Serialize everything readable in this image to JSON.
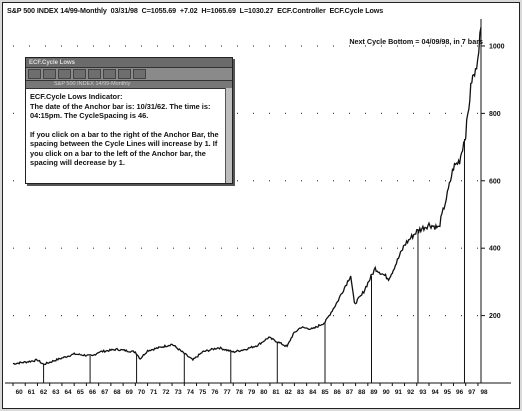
{
  "header": {
    "title": "S&P 500 INDEX 14/99-Monthly",
    "date": "03/31/98",
    "close": "C=1055.69",
    "change": "+7.02",
    "high": "H=1065.69",
    "low": "L=1030.27",
    "controller": "ECF.Controller",
    "indicator": "ECF.Cycle Lows"
  },
  "next_cycle_text": "Next Cycle Bottom = 04/09/98, in 7 bars",
  "dialog": {
    "title_bar": "ECF.Cycle Lows",
    "subbar": "S&P 500 INDEX 14/99-Monthly",
    "heading": "ECF.Cycle Lows Indicator:",
    "line1": "The date of the Anchor bar is: 10/31/62. The time is: 04:15pm. The CycleSpacing is 46.",
    "line2": "If you click on a bar to the right of the Anchor Bar, the spacing between the Cycle Lines will increase by 1. If you click on a bar to the left of the Anchor bar, the spacing will decrease by 1.",
    "toolbar_icons": [
      "arrow-icon",
      "cut-icon",
      "copy-icon",
      "paste-icon",
      "print-icon",
      "zoom-icon",
      "help-icon",
      "window-icon"
    ]
  },
  "chart_data": {
    "type": "line",
    "title": "S&P 500 INDEX 14/99-Monthly",
    "y_ticks": [
      200,
      400,
      600,
      800,
      1000
    ],
    "ylim": [
      0,
      1080
    ],
    "x_tick_labels": [
      "60",
      "61",
      "62",
      "63",
      "64",
      "65",
      "66",
      "67",
      "68",
      "69",
      "70",
      "71",
      "72",
      "73",
      "74",
      "75",
      "76",
      "77",
      "78",
      "79",
      "80",
      "81",
      "82",
      "83",
      "84",
      "85",
      "86",
      "87",
      "88",
      "89",
      "90",
      "91",
      "92",
      "93",
      "94",
      "95",
      "96",
      "97",
      "98"
    ],
    "x_years": [
      1960,
      1998.25
    ],
    "series": [
      {
        "x": [
          1960.0,
          1961.0,
          1962.0,
          1962.5,
          1963.5,
          1965.0,
          1966.5,
          1967.0,
          1968.5,
          1970.0,
          1970.4,
          1971.0,
          1972.5,
          1973.0,
          1974.7,
          1975.5,
          1976.8,
          1978.0,
          1979.0,
          1980.0,
          1980.9,
          1982.4,
          1982.9,
          1983.5,
          1984.5,
          1985.5,
          1986.5,
          1987.6,
          1987.9,
          1988.5,
          1989.6,
          1990.7,
          1991.0,
          1992.0,
          1993.0,
          1994.0,
          1994.8,
          1995.5,
          1996.0,
          1996.5,
          1997.0,
          1997.5,
          1997.8,
          1998.25
        ],
        "values": [
          57,
          62,
          68,
          55,
          68,
          86,
          80,
          92,
          100,
          92,
          72,
          96,
          110,
          115,
          68,
          92,
          105,
          92,
          100,
          112,
          135,
          108,
          145,
          165,
          160,
          180,
          240,
          320,
          235,
          260,
          340,
          310,
          330,
          410,
          450,
          470,
          460,
          560,
          640,
          660,
          740,
          900,
          920,
          1056
        ]
      }
    ],
    "cycle_line_years": [
      1962.5,
      1966.3,
      1970.1,
      1974.0,
      1977.8,
      1981.6,
      1985.5,
      1989.3,
      1993.1,
      1996.9
    ],
    "grid": "dotted horizontal"
  }
}
